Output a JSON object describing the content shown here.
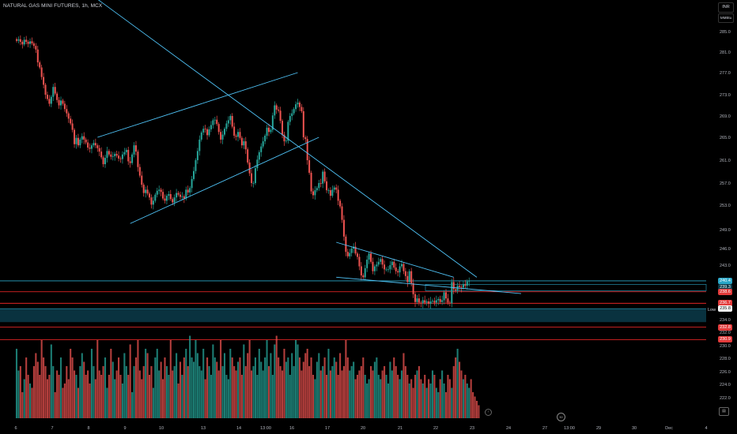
{
  "header": {
    "symbol_line": "NATURAL GAS MINI FUTURES, 1h, MCX"
  },
  "top_right": {
    "currency": "INR",
    "mode": "MMBtu"
  },
  "price_scale_labels": {
    "low_label": "Low"
  },
  "colors": {
    "up": "#26a69a",
    "down": "#ef5350",
    "trendline": "#4fc3f7",
    "sr_line": "#ff2a2a",
    "zone": "#0b3b4a",
    "background": "#000000"
  },
  "chart_data": {
    "type": "candlestick",
    "symbol": "NATURAL GAS MINI FUTURES",
    "interval": "1h",
    "exchange": "MCX",
    "y_ticks": [
      285.0,
      281.0,
      277.0,
      273.0,
      269.0,
      265.0,
      261.0,
      257.0,
      253.0,
      249.0,
      246.0,
      243.0,
      240.4,
      239.3,
      238.6,
      236.7,
      235.8,
      234.0,
      232.8,
      232.0,
      230.9,
      230.0,
      228.0,
      226.0,
      224.0,
      222.0,
      220.0
    ],
    "y_tick_labels": [
      "285.0",
      "281.0",
      "277.0",
      "273.0",
      "269.0",
      "265.0",
      "261.0",
      "257.0",
      "253.0",
      "249.0",
      "246.0",
      "243.0",
      "234.0",
      "232.0",
      "230.0",
      "228.0",
      "226.0",
      "224.0",
      "222.0"
    ],
    "price_badges": [
      {
        "value": "240.4",
        "color": "#2aa6c7",
        "text_color": "#ffffff"
      },
      {
        "value": "239.3",
        "color": "#0b3b4a",
        "text_color": "#ffffff"
      },
      {
        "value": "238.6",
        "color": "#e23b3b",
        "text_color": "#ffffff"
      },
      {
        "value": "236.7",
        "color": "#e23b3b",
        "text_color": "#ffffff"
      },
      {
        "value": "235.8",
        "color": "#ffffff",
        "text_color": "#000000"
      },
      {
        "value": "232.8",
        "color": "#e23b3b",
        "text_color": "#ffffff"
      },
      {
        "value": "230.9",
        "color": "#e23b3b",
        "text_color": "#ffffff"
      }
    ],
    "x_ticks": [
      "6",
      "7",
      "8",
      "9",
      "10",
      "13",
      "14",
      "13:00",
      "16",
      "17",
      "20",
      "21",
      "22",
      "23",
      "24",
      "27",
      "13:00",
      "29",
      "30",
      "Dec",
      "4"
    ],
    "horizontal_levels": [
      240.4,
      238.6,
      236.7,
      232.8,
      230.9
    ],
    "demand_zone": [
      233.6,
      235.8
    ],
    "closes": [
      283.2,
      283.5,
      283.0,
      282.5,
      283.4,
      283.0,
      282.6,
      283.1,
      282.7,
      282.2,
      281.5,
      279.0,
      278.0,
      276.2,
      274.8,
      273.0,
      272.2,
      271.3,
      272.6,
      274.4,
      273.2,
      272.0,
      271.0,
      271.9,
      271.3,
      270.3,
      269.5,
      268.5,
      267.6,
      266.4,
      263.8,
      264.9,
      263.6,
      264.6,
      265.2,
      264.6,
      264.1,
      263.2,
      263.0,
      263.6,
      264.0,
      263.6,
      263.1,
      262.5,
      261.5,
      260.3,
      261.4,
      262.6,
      262.0,
      261.6,
      261.7,
      262.1,
      261.8,
      261.3,
      261.2,
      262.0,
      262.4,
      262.8,
      260.8,
      260.5,
      262.0,
      263.6,
      262.5,
      259.8,
      258.3,
      256.7,
      255.2,
      255.8,
      255.1,
      254.4,
      253.1,
      253.8,
      254.9,
      255.6,
      255.8,
      255.4,
      254.2,
      253.8,
      254.7,
      255.0,
      254.1,
      253.5,
      254.4,
      255.2,
      254.9,
      254.5,
      254.6,
      254.2,
      255.8,
      255.3,
      256.1,
      257.7,
      259.1,
      261.0,
      262.6,
      264.6,
      265.9,
      266.6,
      266.5,
      265.4,
      266.5,
      267.3,
      268.2,
      268.3,
      267.5,
      266.0,
      264.6,
      265.5,
      266.6,
      267.6,
      268.2,
      269.0,
      267.0,
      265.3,
      265.1,
      266.0,
      264.9,
      263.6,
      264.3,
      262.9,
      260.6,
      258.7,
      257.0,
      257.0,
      259.6,
      261.1,
      262.4,
      263.4,
      264.3,
      265.3,
      266.8,
      266.0,
      266.4,
      269.1,
      271.0,
      270.2,
      270.0,
      268.1,
      265.5,
      264.3,
      264.4,
      267.9,
      269.0,
      269.5,
      270.3,
      271.2,
      271.5,
      270.7,
      269.9,
      265.0,
      264.7,
      261.0,
      258.8,
      255.5,
      254.8,
      255.7,
      256.1,
      257.0,
      256.9,
      259.0,
      257.3,
      255.7,
      255.7,
      254.7,
      255.8,
      256.2,
      255.8,
      253.8,
      252.8,
      250.6,
      247.9,
      245.4,
      244.6,
      245.2,
      246.0,
      246.3,
      245.1,
      244.5,
      242.8,
      241.3,
      241.0,
      242.5,
      244.0,
      245.1,
      243.6,
      242.0,
      242.8,
      243.1,
      243.6,
      244.1,
      243.1,
      242.3,
      242.3,
      242.3,
      243.0,
      243.6,
      242.6,
      242.0,
      241.8,
      242.8,
      243.2,
      242.0,
      241.2,
      240.2,
      242.0,
      240.0,
      238.2,
      236.9,
      237.5,
      236.8,
      236.7,
      237.2,
      236.8,
      237.0,
      236.6,
      237.0,
      237.1,
      236.8,
      237.2,
      237.4,
      236.9,
      237.2,
      238.5,
      237.5,
      236.8,
      236.7,
      240.2,
      239.0,
      238.8,
      239.6,
      239.4,
      239.3,
      239.8,
      239.6,
      240.3,
      240.4
    ],
    "volume_scale": [
      0.8,
      0.55,
      0.6,
      0.3,
      0.45,
      0.7,
      0.5,
      0.4,
      0.35,
      0.6,
      0.75,
      0.65,
      0.5,
      0.9,
      0.7,
      0.6,
      0.45,
      0.5,
      0.85,
      0.6,
      0.3,
      0.55,
      0.5,
      0.7,
      0.35,
      0.4,
      0.6,
      0.45,
      0.8,
      0.7,
      0.55,
      0.5,
      0.35,
      0.6,
      0.75,
      0.65,
      0.5,
      0.55,
      0.4,
      0.8,
      0.6,
      0.45,
      0.9,
      0.55,
      0.5,
      0.6,
      0.7,
      0.35,
      0.5,
      0.8,
      0.65,
      0.45,
      0.55,
      0.7,
      0.5,
      0.4,
      0.75,
      0.6,
      0.5,
      0.85,
      0.3,
      0.6,
      0.7,
      0.9,
      0.55,
      0.45,
      0.6,
      0.8,
      0.75,
      0.5,
      0.6,
      0.35,
      0.7,
      0.8,
      0.55,
      0.65,
      0.45,
      0.7,
      0.6,
      0.5,
      0.9,
      0.55,
      0.6,
      0.75,
      0.4,
      0.65,
      0.5,
      0.7,
      0.8,
      0.6,
      0.95,
      0.7,
      0.65,
      0.9,
      0.75,
      0.6,
      0.55,
      0.8,
      0.45,
      0.7,
      0.6,
      0.5,
      0.85,
      0.7,
      0.65,
      0.55,
      0.9,
      0.6,
      0.75,
      0.5,
      0.45,
      0.8,
      0.7,
      0.6,
      0.55,
      0.65,
      0.7,
      0.5,
      0.85,
      0.6,
      0.75,
      0.9,
      0.55,
      0.6,
      0.7,
      0.5,
      0.8,
      0.65,
      0.55,
      0.7,
      0.9,
      0.6,
      0.75,
      0.5,
      0.85,
      0.95,
      0.7,
      0.6,
      0.55,
      0.8,
      0.65,
      0.7,
      0.5,
      0.75,
      0.6,
      0.9,
      0.85,
      0.7,
      0.55,
      0.65,
      0.75,
      0.8,
      0.6,
      0.7,
      0.5,
      0.45,
      0.65,
      0.75,
      0.55,
      0.6,
      0.7,
      0.5,
      0.8,
      0.55,
      0.6,
      0.7,
      0.65,
      0.5,
      0.75,
      0.55,
      0.6,
      0.9,
      0.7,
      0.55,
      0.6,
      0.65,
      0.45,
      0.5,
      0.55,
      0.6,
      0.7,
      0.5,
      0.4,
      0.45,
      0.6,
      0.55,
      0.65,
      0.7,
      0.5,
      0.45,
      0.55,
      0.6,
      0.5,
      0.4,
      0.65,
      0.55,
      0.7,
      0.6,
      0.5,
      0.45,
      0.55,
      0.75,
      0.6,
      0.5,
      0.4,
      0.45,
      0.35,
      0.5,
      0.55,
      0.6,
      0.45,
      0.4,
      0.5,
      0.35,
      0.45,
      0.4,
      0.55,
      0.5,
      0.35,
      0.3,
      0.45,
      0.55,
      0.4,
      0.3,
      0.5,
      0.45,
      0.35,
      0.6,
      0.7,
      0.8,
      0.65,
      0.55,
      0.45,
      0.5,
      0.4,
      0.35,
      0.45,
      0.3,
      0.25,
      0.2,
      0.15
    ],
    "trendlines": [
      {
        "name": "long-downtrend",
        "from": [
          -0.5,
          303.0
        ],
        "to": [
          239,
          241.0
        ]
      },
      {
        "name": "channel-upper",
        "from": [
          42,
          265.0
        ],
        "to": [
          146,
          277.0
        ]
      },
      {
        "name": "channel-lower",
        "from": [
          59,
          250.0
        ],
        "to": [
          157,
          265.0
        ]
      },
      {
        "name": "wedge-top",
        "from": [
          166,
          247.0
        ],
        "to": [
          227,
          241.0
        ]
      },
      {
        "name": "wedge-bottom-ray",
        "from": [
          166,
          241.0
        ],
        "to": [
          262,
          238.3
        ]
      }
    ]
  }
}
